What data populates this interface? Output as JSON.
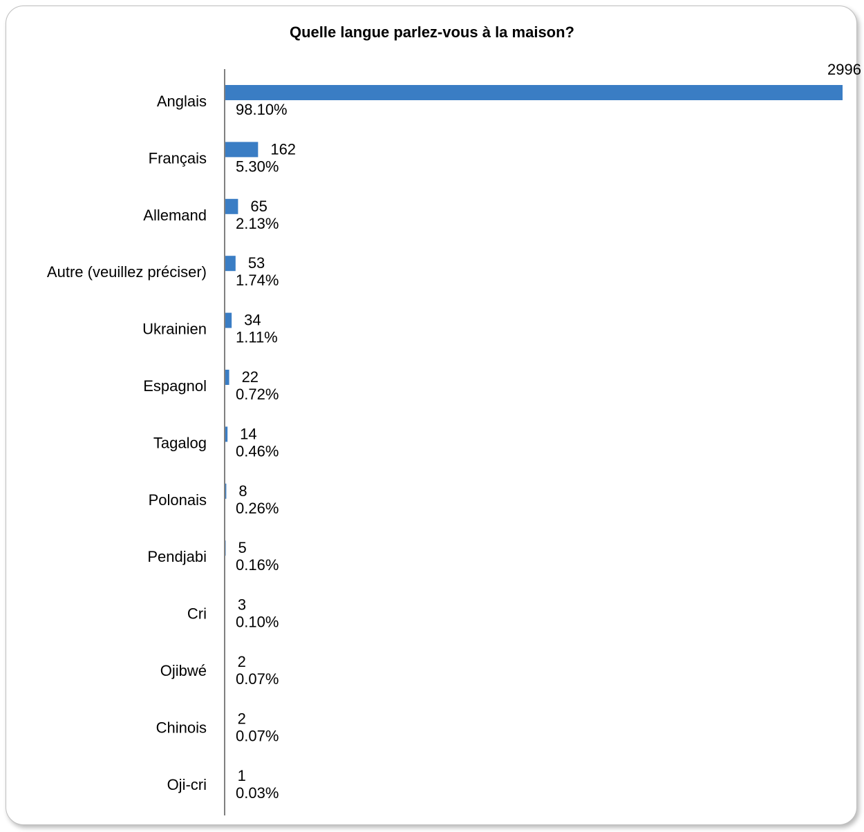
{
  "chart_data": {
    "type": "bar",
    "orientation": "horizontal",
    "title": "Quelle langue parlez-vous à la maison?",
    "xlabel": "",
    "ylabel": "",
    "grid": false,
    "legend": "none",
    "xlim": [
      0,
      2996
    ],
    "categories": [
      "Anglais",
      "Français",
      "Allemand",
      "Autre (veuillez préciser)",
      "Ukrainien",
      "Espagnol",
      "Tagalog",
      "Polonais",
      "Pendjabi",
      "Cri",
      "Ojibwé",
      "Chinois",
      "Oji-cri"
    ],
    "values": [
      2996,
      162,
      65,
      53,
      34,
      22,
      14,
      8,
      5,
      3,
      2,
      2,
      1
    ],
    "percentages": [
      "98.10%",
      "5.30%",
      "2.13%",
      "1.74%",
      "1.11%",
      "0.72%",
      "0.46%",
      "0.26%",
      "0.16%",
      "0.10%",
      "0.07%",
      "0.07%",
      "0.03%"
    ],
    "bar_color": "#3a7dc4",
    "axis_color": "#7f7f7f"
  }
}
